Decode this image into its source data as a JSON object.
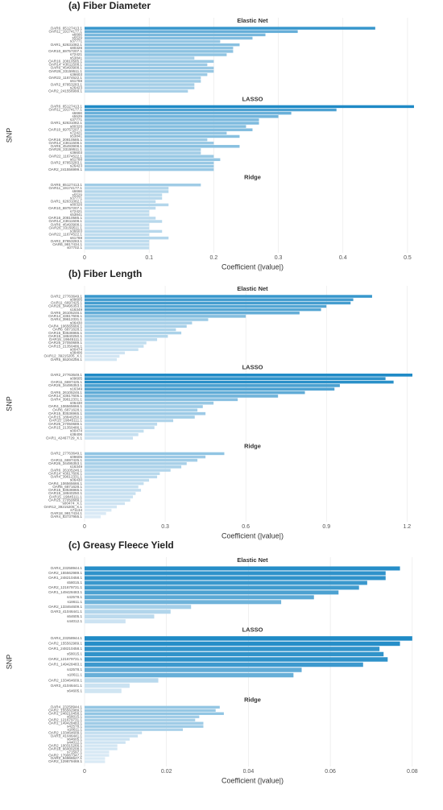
{
  "chart_data": [
    {
      "type": "bar",
      "title": "(a) Fiber Diameter",
      "xlabel": "Coefficient (|value|)",
      "ylabel": "SNP",
      "xlim": [
        0,
        0.52
      ],
      "xticks": [
        0.0,
        0.1,
        0.2,
        0.3,
        0.4,
        0.5
      ],
      "grid": true,
      "colors": [
        "#e6f0f8",
        "#1f8ac6"
      ],
      "panels": [
        {
          "title": "Elastic Net",
          "categories": [
            "OAR6_65127413.1",
            "OAR11_19174177.1",
            "s6666",
            "s5529",
            "s37771",
            "OAR1_62631082.1",
            "s80326",
            "OAR10_69757207.1",
            "s72421",
            "s53841",
            "OAR16_20810585.1",
            "OAR14_43611508.1",
            "OAR6_45493908.1",
            "OAR26_33159511.1",
            "s36603",
            "OAR22_11674522.1",
            "s61788",
            "OAR2_87853283.1",
            "s26423",
            "OAR2_241556999.1"
          ],
          "values": [
            0.45,
            0.33,
            0.28,
            0.26,
            0.21,
            0.24,
            0.23,
            0.23,
            0.22,
            0.17,
            0.2,
            0.19,
            0.2,
            0.2,
            0.19,
            0.18,
            0.18,
            0.17,
            0.17,
            0.16
          ]
        },
        {
          "title": "LASSO",
          "categories": [
            "OAR6_65127413.1",
            "OAR11_19174177.1",
            "s6666",
            "s5529",
            "s37771",
            "OAR1_62631082.1",
            "s80326",
            "OAR10_69757207.1",
            "s72421",
            "s53841",
            "OAR16_20810585.1",
            "OAR14_43611508.1",
            "OAR6_45493908.1",
            "OAR26_33159511.1",
            "s36603",
            "OAR22_11674522.1",
            "s61788",
            "OAR2_87853283.1",
            "s26423",
            "OAR2_241556999.1"
          ],
          "values": [
            0.51,
            0.39,
            0.32,
            0.3,
            0.27,
            0.27,
            0.25,
            0.26,
            0.22,
            0.24,
            0.19,
            0.2,
            0.24,
            0.18,
            0.18,
            0.2,
            0.21,
            0.2,
            0.2,
            0.2
          ]
        },
        {
          "title": "Ridge",
          "categories": [
            "OAR6_65127413.1",
            "OAR11_19174177.1",
            "s6666",
            "s5529",
            "s37771",
            "OAR1_62631082.1",
            "s80326",
            "OAR10_69757207.1",
            "s72421",
            "s53841",
            "OAR16_20810585.1",
            "OAR14_43611508.1",
            "OAR6_45493908.1",
            "OAR26_33159511.1",
            "s36603",
            "OAR22_11674522.1",
            "s61788",
            "OAR2_87853283.1",
            "OAR6_9817434.1",
            "s07702.1"
          ],
          "values": [
            0.18,
            0.13,
            0.13,
            0.12,
            0.12,
            0.11,
            0.13,
            0.11,
            0.1,
            0.1,
            0.11,
            0.12,
            0.1,
            0.1,
            0.12,
            0.1,
            0.13,
            0.1,
            0.1,
            0.1
          ]
        }
      ]
    },
    {
      "type": "bar",
      "title": "(b) Fiber Length",
      "xlabel": "Coefficient (|value|)",
      "ylabel": "SNP",
      "xlim": [
        0,
        1.25
      ],
      "xticks": [
        0.0,
        0.3,
        0.6,
        0.9,
        1.2
      ],
      "grid": true,
      "colors": [
        "#e6f0f8",
        "#1f8ac6"
      ],
      "panels": [
        {
          "title": "Elastic Net",
          "categories": [
            "OAR2_27763649.1",
            "s09605",
            "OAR11_6697425.1",
            "OAR26_34495353.1",
            "s16349",
            "OAR6_26105246.1",
            "OAR14_43617606.1",
            "OAR4_39612331.1",
            "s06430",
            "OAR4_106565666.1",
            "OAR6_6871628.1",
            "OAR15_83536965.1",
            "OAR15_18840250.1",
            "OAR15_19845111.1",
            "OAR25_27050689.1",
            "OAR15_21350486.1",
            "s00474",
            "s38406",
            "OAR12_39215205_X.1",
            "OAR5_55204256.1"
          ],
          "values": [
            1.07,
            1.0,
            0.99,
            0.9,
            0.88,
            0.8,
            0.6,
            0.46,
            0.4,
            0.38,
            0.34,
            0.36,
            0.31,
            0.27,
            0.23,
            0.22,
            0.2,
            0.15,
            0.13,
            0.12
          ]
        },
        {
          "title": "LASSO",
          "categories": [
            "OAR2_27763649.1",
            "s09605",
            "OAR11_6697425.1",
            "OAR26_34495353.1",
            "s16349",
            "OAR6_26105246.1",
            "OAR14_43617606.1",
            "OAR4_39612331.1",
            "s06430",
            "OAR4_106565666.1",
            "OAR6_6871628.1",
            "OAR15_83536965.1",
            "OAR15_18840250.1",
            "OAR15_19845111.1",
            "OAR25_27050689.1",
            "OAR15_21350486.1",
            "s00474",
            "s38406",
            "OAR1_42467729_X.1"
          ],
          "values": [
            1.22,
            1.12,
            1.15,
            0.95,
            0.93,
            0.82,
            0.72,
            0.57,
            0.48,
            0.44,
            0.42,
            0.45,
            0.41,
            0.33,
            0.27,
            0.26,
            0.22,
            0.2,
            0.18
          ]
        },
        {
          "title": "Ridge",
          "categories": [
            "OAR2_27763649.1",
            "s09605",
            "OAR11_6697425.1",
            "OAR26_34495353.1",
            "s16349",
            "OAR6_26105246.1",
            "OAR14_43617606.1",
            "OAR4_39612331.1",
            "s06430",
            "OAR4_106565666.1",
            "OAR6_6871628.1",
            "OAR15_83536965.1",
            "OAR15_18840250.1",
            "OAR15_19845111.1",
            "OAR25_27050689.1",
            "s00474_X.1",
            "OAR12_39215205_X.1",
            "s71134",
            "OAR18_9817434.1",
            "OAR4_83737955.1"
          ],
          "values": [
            0.52,
            0.45,
            0.42,
            0.38,
            0.36,
            0.32,
            0.28,
            0.27,
            0.24,
            0.22,
            0.2,
            0.21,
            0.19,
            0.18,
            0.17,
            0.15,
            0.12,
            0.1,
            0.08,
            0.06
          ]
        }
      ]
    },
    {
      "type": "bar",
      "title": "(c) Greasy Fleece Yield",
      "xlabel": "Coefficient (|value|)",
      "ylabel": "SNP",
      "xlim": [
        0,
        0.082
      ],
      "xticks": [
        0.0,
        0.02,
        0.04,
        0.06,
        0.08
      ],
      "grid": true,
      "colors": [
        "#e6f0f8",
        "#1f8ac6"
      ],
      "panels": [
        {
          "title": "Elastic Net",
          "categories": [
            "OAR4_23258944.1",
            "OAR2_155562989.1",
            "OAR1_248210458.1",
            "s58015.1",
            "OAR2_121679731.1",
            "OAR1_149428483.1",
            "s42578.1",
            "s18611.1",
            "OAR2_133464609.1",
            "OAR3_41046441.1",
            "s64605.1",
            "s44012.1"
          ],
          "values": [
            0.077,
            0.0735,
            0.0735,
            0.069,
            0.067,
            0.062,
            0.056,
            0.048,
            0.026,
            0.021,
            0.017,
            0.01
          ]
        },
        {
          "title": "LASSO",
          "categories": [
            "OAR4_23258944.1",
            "OAR2_155562989.1",
            "OAR1_248210458.1",
            "s58015.1",
            "OAR2_121679731.1",
            "OAR1_149428483.1",
            "s42578.1",
            "s18611.1",
            "OAR2_133464609.1",
            "OAR3_41046441.1",
            "s64605.1"
          ],
          "values": [
            0.08,
            0.077,
            0.072,
            0.073,
            0.074,
            0.068,
            0.053,
            0.051,
            0.018,
            0.011,
            0.009
          ]
        },
        {
          "title": "Ridge",
          "categories": [
            "OAR4_23258944.1",
            "OAR2_155562989.1",
            "OAR1_248210458.1",
            "s58015.1",
            "OAR2_121679731.1",
            "OAR1_149428483.1",
            "s42578.1",
            "s18611.1",
            "OAR2_133464609.1",
            "OAR3_41046441.1",
            "s64605.1",
            "s44012.1",
            "OAR2_100315266.1",
            "OAR18_66000208.1",
            "s71597.1",
            "OAR2_179067347.1",
            "OAR2_94966527.1",
            "OAR2_129879469.1"
          ],
          "values": [
            0.033,
            0.032,
            0.034,
            0.028,
            0.027,
            0.029,
            0.029,
            0.024,
            0.014,
            0.013,
            0.011,
            0.01,
            0.008,
            0.008,
            0.006,
            0.006,
            0.005,
            0.005
          ]
        }
      ]
    }
  ]
}
